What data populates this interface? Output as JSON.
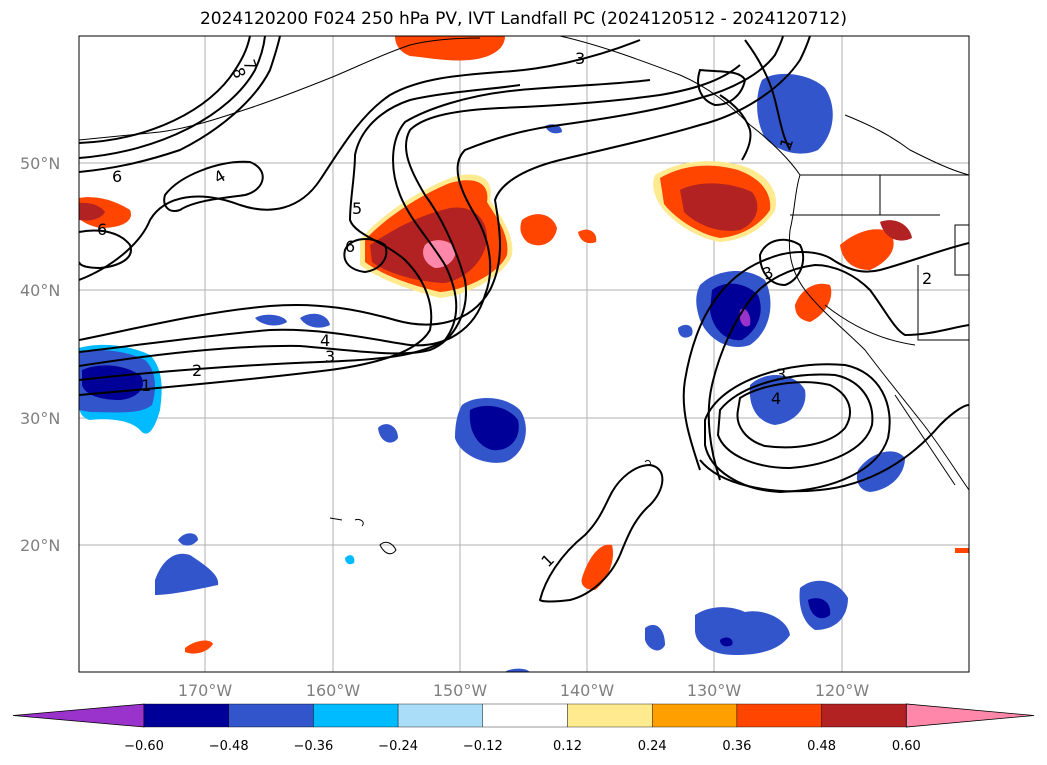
{
  "title": "2024120200 F024 250 hPa PV, IVT Landfall PC (2024120512 - 2024120712)",
  "map": {
    "lat_labels": [
      "50°N",
      "40°N",
      "30°N",
      "20°N"
    ],
    "lon_labels": [
      "170°W",
      "160°W",
      "150°W",
      "140°W",
      "130°W",
      "120°W"
    ],
    "contour_labels": [
      "8",
      "7",
      "3",
      "1",
      "6",
      "4",
      "5",
      "6",
      "6",
      "3",
      "2",
      "4",
      "3",
      "2",
      "1",
      "3",
      "4",
      "1"
    ]
  },
  "colorbar": {
    "ticks": [
      "−0.60",
      "−0.48",
      "−0.36",
      "−0.24",
      "−0.12",
      "0.12",
      "0.24",
      "0.36",
      "0.48",
      "0.60"
    ],
    "colors": [
      "#9933cc",
      "#000099",
      "#3355cc",
      "#00bbff",
      "#aaddf7",
      "#ffffff",
      "#ffea90",
      "#ff9f00",
      "#ff4500",
      "#b22222",
      "#ff88aa"
    ]
  }
}
